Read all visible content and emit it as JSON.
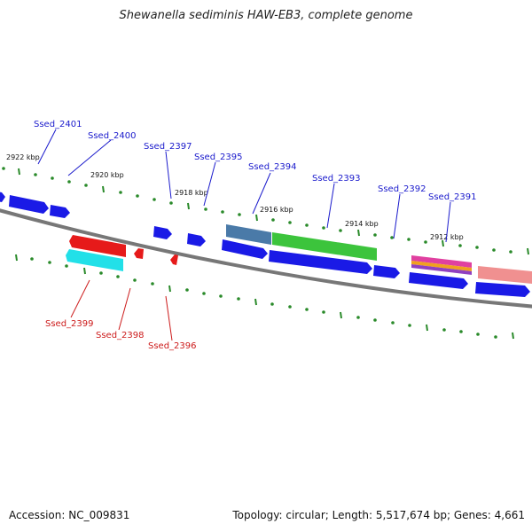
{
  "title": "Shewanella sediminis HAW-EB3, complete genome",
  "accession": "Accession: NC_009831",
  "summary": "Topology: circular; Length: 5,517,674 bp; Genes: 4,661",
  "colors": {
    "backbone": "#777777",
    "tick": "#2a8a2a",
    "forward_label": "#1a1acc",
    "reverse_label": "#cc1a1a",
    "gene_blue": "#1a1ae6",
    "gene_red": "#e61a1a",
    "gene_cyan": "#22e0e8",
    "gene_green": "#3cc43c",
    "gene_steel": "#4a7aa8",
    "gene_pink": "#f09090"
  },
  "kbp_labels": [
    "2922 kbp",
    "2920 kbp",
    "2918 kbp",
    "2916 kbp",
    "2914 kbp",
    "2912 kbp"
  ],
  "forward_genes": [
    "Ssed_2401",
    "Ssed_2400",
    "Ssed_2397",
    "Ssed_2395",
    "Ssed_2394",
    "Ssed_2393",
    "Ssed_2392",
    "Ssed_2391"
  ],
  "reverse_genes": [
    "Ssed_2399",
    "Ssed_2398",
    "Ssed_2396"
  ]
}
